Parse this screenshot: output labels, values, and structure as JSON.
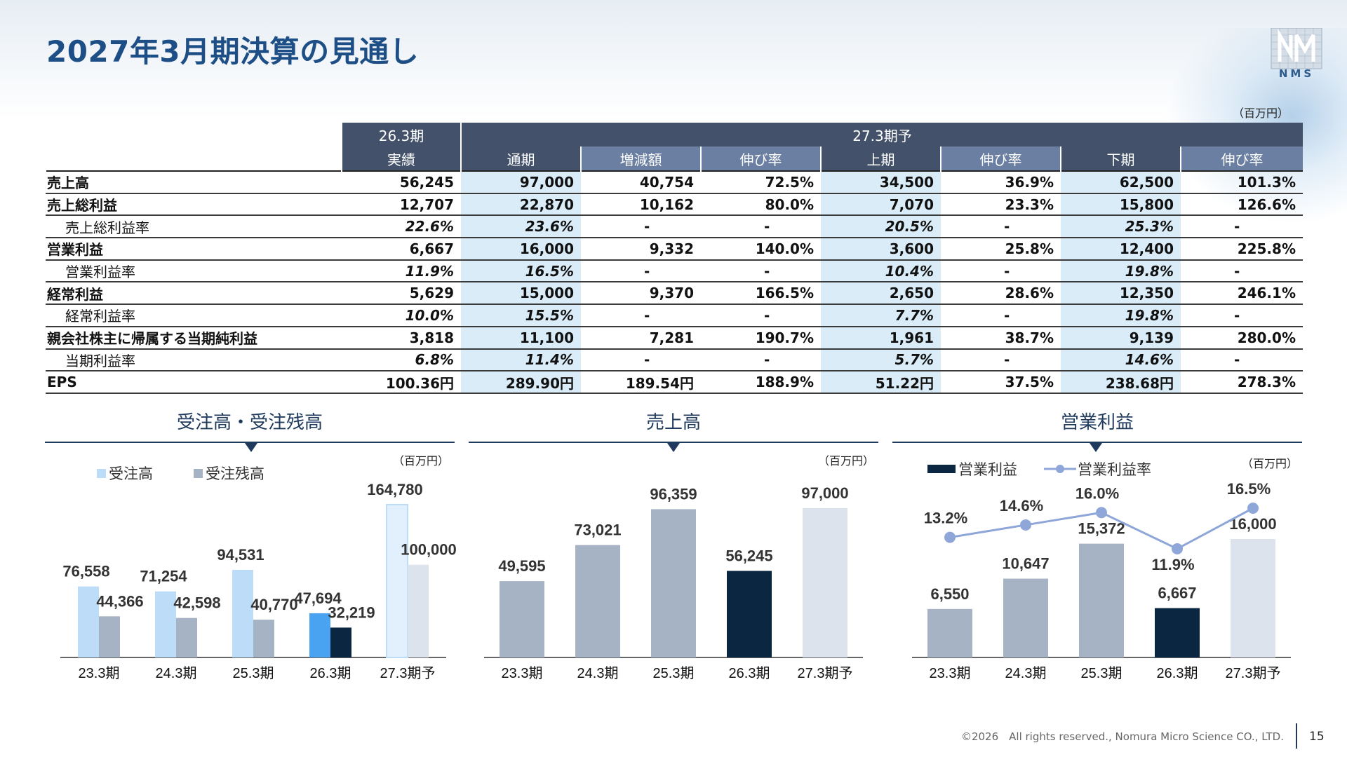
{
  "title": "2027年3月期決算の見通し",
  "logo_text": "NMS",
  "unit": "（百万円）",
  "table": {
    "header1": [
      "26.3期",
      "27.3期予"
    ],
    "header2": [
      "実績",
      "通期",
      "増減額",
      "伸び率",
      "上期",
      "伸び率",
      "下期",
      "伸び率"
    ],
    "rows": [
      {
        "label": "売上高",
        "values": [
          "56,245",
          "97,000",
          "40,754",
          "72.5%",
          "34,500",
          "36.9%",
          "62,500",
          "101.3%"
        ]
      },
      {
        "label": "売上総利益",
        "values": [
          "12,707",
          "22,870",
          "10,162",
          "80.0%",
          "7,070",
          "23.3%",
          "15,800",
          "126.6%"
        ]
      },
      {
        "label": "売上総利益率",
        "values": [
          "22.6%",
          "23.6%",
          "-",
          "-",
          "20.5%",
          "-",
          "25.3%",
          "-"
        ]
      },
      {
        "label": "営業利益",
        "values": [
          "6,667",
          "16,000",
          "9,332",
          "140.0%",
          "3,600",
          "25.8%",
          "12,400",
          "225.8%"
        ]
      },
      {
        "label": "営業利益率",
        "values": [
          "11.9%",
          "16.5%",
          "-",
          "-",
          "10.4%",
          "-",
          "19.8%",
          "-"
        ]
      },
      {
        "label": "経常利益",
        "values": [
          "5,629",
          "15,000",
          "9,370",
          "166.5%",
          "2,650",
          "28.6%",
          "12,350",
          "246.1%"
        ]
      },
      {
        "label": "経常利益率",
        "values": [
          "10.0%",
          "15.5%",
          "-",
          "-",
          "7.7%",
          "-",
          "19.8%",
          "-"
        ]
      },
      {
        "label": "親会社株主に帰属する当期純利益",
        "values": [
          "3,818",
          "11,100",
          "7,281",
          "190.7%",
          "1,961",
          "38.7%",
          "9,139",
          "280.0%"
        ]
      },
      {
        "label": "当期利益率",
        "values": [
          "6.8%",
          "11.4%",
          "-",
          "-",
          "5.7%",
          "-",
          "14.6%",
          "-"
        ]
      },
      {
        "label": "EPS",
        "values": [
          "100.36円",
          "289.90円",
          "189.54円",
          "188.9%",
          "51.22円",
          "37.5%",
          "238.68円",
          "278.3%"
        ]
      }
    ]
  },
  "charts": {
    "orders": {
      "title": "受注高・受注残高",
      "unit": "（百万円）",
      "legend": [
        "受注高",
        "受注残高"
      ]
    },
    "sales": {
      "title": "売上高",
      "unit": "（百万円）"
    },
    "op": {
      "title": "営業利益",
      "unit": "（百万円）",
      "legend": [
        "営業利益",
        "営業利益率"
      ]
    }
  },
  "chart_data": [
    {
      "type": "bar",
      "title": "受注高・受注残高",
      "categories": [
        "23.3期",
        "24.3期",
        "25.3期",
        "26.3期",
        "27.3期予"
      ],
      "series": [
        {
          "name": "受注高",
          "values": [
            76558,
            71254,
            94531,
            47694,
            164780
          ],
          "labels": [
            "76,558",
            "71,254",
            "94,531",
            "47,694",
            "164,780"
          ]
        },
        {
          "name": "受注残高",
          "values": [
            44366,
            42598,
            40770,
            32219,
            100000
          ],
          "labels": [
            "44,366",
            "42,598",
            "40,770",
            "32,219",
            "100,000"
          ]
        }
      ],
      "colors": {
        "orders": [
          "#bcdcf7",
          "#bcdcf7",
          "#bcdcf7",
          "#4aa3f0",
          "#e1f0fc"
        ],
        "backlog": [
          "#a6b3c5",
          "#a6b3c5",
          "#a6b3c5",
          "#0b2640",
          "#dde3ec"
        ]
      },
      "legend_position": "top-left"
    },
    {
      "type": "bar",
      "title": "売上高",
      "categories": [
        "23.3期",
        "24.3期",
        "25.3期",
        "26.3期",
        "27.3期予"
      ],
      "values": [
        49595,
        73021,
        96359,
        56245,
        97000
      ],
      "labels": [
        "49,595",
        "73,021",
        "96,359",
        "56,245",
        "97,000"
      ],
      "colors": [
        "#a6b3c5",
        "#a6b3c5",
        "#a6b3c5",
        "#0b2640",
        "#dde3ec"
      ]
    },
    {
      "type": "bar",
      "title": "営業利益",
      "categories": [
        "23.3期",
        "24.3期",
        "25.3期",
        "26.3期",
        "27.3期予"
      ],
      "series": [
        {
          "name": "営業利益",
          "values": [
            6550,
            10647,
            15372,
            6667,
            16000
          ],
          "labels": [
            "6,550",
            "10,647",
            "15,372",
            "6,667",
            "16,000"
          ]
        },
        {
          "name": "営業利益率",
          "type": "line",
          "values": [
            13.2,
            14.6,
            16.0,
            11.9,
            16.5
          ],
          "labels": [
            "13.2%",
            "14.6%",
            "16.0%",
            "11.9%",
            "16.5%"
          ]
        }
      ],
      "colors": {
        "bars": [
          "#a6b3c5",
          "#a6b3c5",
          "#a6b3c5",
          "#0b2640",
          "#dde3ec"
        ],
        "line": "#8fa6d9"
      },
      "legend_position": "top-left"
    }
  ],
  "footer": "©2026　All rights reserved., Nomura Micro Science CO., LTD.",
  "page_number": "15"
}
